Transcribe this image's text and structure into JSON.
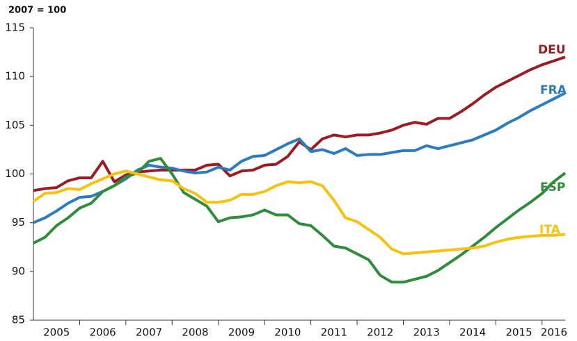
{
  "chart_data": {
    "type": "line",
    "y_label": "2007 = 100",
    "x": [
      2005,
      2005.25,
      2005.5,
      2005.75,
      2006,
      2006.25,
      2006.5,
      2006.75,
      2007,
      2007.25,
      2007.5,
      2007.75,
      2008,
      2008.25,
      2008.5,
      2008.75,
      2009,
      2009.25,
      2009.5,
      2009.75,
      2010,
      2010.25,
      2010.5,
      2010.75,
      2011,
      2011.25,
      2011.5,
      2011.75,
      2012,
      2012.25,
      2012.5,
      2012.75,
      2013,
      2013.25,
      2013.5,
      2013.75,
      2014,
      2014.25,
      2014.5,
      2014.75,
      2015,
      2015.25,
      2015.5,
      2015.75,
      2016,
      2016.25,
      2016.5
    ],
    "series": [
      {
        "name": "DEU",
        "color": "#9b1c22",
        "values": [
          98.3,
          98.5,
          98.6,
          99.3,
          99.6,
          99.6,
          101.3,
          99.2,
          99.9,
          100.2,
          100.3,
          100.4,
          100.4,
          100.4,
          100.4,
          100.9,
          101.0,
          99.8,
          100.3,
          100.4,
          100.9,
          101.0,
          101.8,
          103.3,
          102.5,
          103.6,
          104.0,
          103.8,
          104.0,
          104.0,
          104.2,
          104.5,
          105.0,
          105.3,
          105.1,
          105.7,
          105.7,
          106.4,
          107.2,
          108.1,
          108.9,
          109.5,
          110.1,
          110.7,
          111.2,
          111.6,
          112.0
        ]
      },
      {
        "name": "FRA",
        "color": "#2a7bbf",
        "values": [
          95.0,
          95.5,
          96.2,
          97.0,
          97.6,
          97.7,
          98.2,
          98.8,
          99.5,
          100.4,
          100.9,
          100.7,
          100.6,
          100.3,
          100.1,
          100.2,
          100.7,
          100.4,
          101.3,
          101.8,
          101.9,
          102.5,
          103.1,
          103.6,
          102.3,
          102.5,
          102.1,
          102.6,
          101.9,
          102.0,
          102.0,
          102.2,
          102.4,
          102.4,
          102.9,
          102.6,
          102.9,
          103.2,
          103.5,
          104.0,
          104.5,
          105.2,
          105.8,
          106.5,
          107.1,
          107.7,
          108.3
        ]
      },
      {
        "name": "ESP",
        "color": "#2f8c3a",
        "values": [
          92.9,
          93.5,
          94.7,
          95.5,
          96.5,
          97.0,
          98.2,
          98.8,
          99.7,
          100.1,
          101.3,
          101.6,
          100.0,
          98.1,
          97.4,
          96.7,
          95.1,
          95.5,
          95.6,
          95.8,
          96.3,
          95.8,
          95.8,
          94.9,
          94.7,
          93.7,
          92.6,
          92.4,
          91.8,
          91.2,
          89.6,
          88.9,
          88.9,
          89.2,
          89.5,
          90.1,
          90.9,
          91.7,
          92.6,
          93.5,
          94.5,
          95.4,
          96.3,
          97.1,
          98.0,
          99.2,
          100.1
        ]
      },
      {
        "name": "ITA",
        "color": "#f6c10f",
        "values": [
          97.2,
          98.0,
          98.1,
          98.5,
          98.4,
          99.0,
          99.5,
          100.0,
          100.3,
          100.0,
          99.7,
          99.4,
          99.3,
          98.5,
          98.0,
          97.1,
          97.1,
          97.3,
          97.9,
          97.9,
          98.2,
          98.8,
          99.2,
          99.1,
          99.2,
          98.8,
          97.3,
          95.5,
          95.1,
          94.3,
          93.5,
          92.3,
          91.8,
          91.9,
          92.0,
          92.1,
          92.2,
          92.3,
          92.4,
          92.6,
          93.0,
          93.3,
          93.5,
          93.6,
          93.7,
          93.7,
          93.8
        ]
      }
    ],
    "xlim": [
      2005,
      2016.5
    ],
    "xticks": [
      2005,
      2006,
      2007,
      2008,
      2009,
      2010,
      2011,
      2012,
      2013,
      2014,
      2015,
      2016
    ],
    "ylim": [
      85,
      115
    ],
    "yticks": [
      85,
      90,
      95,
      100,
      105,
      110,
      115
    ]
  }
}
